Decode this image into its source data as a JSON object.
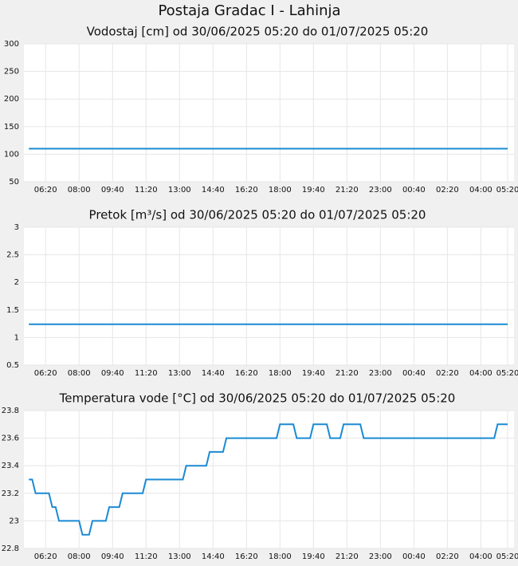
{
  "title": "Postaja Gradac I - Lahinja",
  "chart_data": [
    {
      "type": "line",
      "title": "Vodostaj [cm] od 30/06/2025 05:20 do 01/07/2025 05:20",
      "series": [
        {
          "color": "#1a8ad4",
          "x": [
            10,
            1440
          ],
          "values": [
            110,
            110
          ]
        }
      ],
      "xlim": [
        0,
        1440
      ],
      "xticks": [
        {
          "value": 60,
          "label": "06:20"
        },
        {
          "value": 160,
          "label": "08:00"
        },
        {
          "value": 260,
          "label": "09:40"
        },
        {
          "value": 360,
          "label": "11:20"
        },
        {
          "value": 460,
          "label": "13:00"
        },
        {
          "value": 560,
          "label": "14:40"
        },
        {
          "value": 660,
          "label": "16:20"
        },
        {
          "value": 760,
          "label": "18:00"
        },
        {
          "value": 860,
          "label": "19:40"
        },
        {
          "value": 960,
          "label": "21:20"
        },
        {
          "value": 1060,
          "label": "23:00"
        },
        {
          "value": 1160,
          "label": "00:40"
        },
        {
          "value": 1260,
          "label": "02:20"
        },
        {
          "value": 1360,
          "label": "04:00"
        },
        {
          "value": 1440,
          "label": "05:20"
        }
      ],
      "ylim": [
        50,
        300
      ],
      "yticks": [
        50,
        100,
        150,
        200,
        250,
        300
      ],
      "grid": true
    },
    {
      "type": "line",
      "title": "Pretok [m³/s] od 30/06/2025 05:20 do 01/07/2025 05:20",
      "series": [
        {
          "color": "#1a8ad4",
          "x": [
            10,
            1440
          ],
          "values": [
            1.24,
            1.24
          ]
        }
      ],
      "xlim": [
        0,
        1440
      ],
      "xticks": [
        {
          "value": 60,
          "label": "06:20"
        },
        {
          "value": 160,
          "label": "08:00"
        },
        {
          "value": 260,
          "label": "09:40"
        },
        {
          "value": 360,
          "label": "11:20"
        },
        {
          "value": 460,
          "label": "13:00"
        },
        {
          "value": 560,
          "label": "14:40"
        },
        {
          "value": 660,
          "label": "16:20"
        },
        {
          "value": 760,
          "label": "18:00"
        },
        {
          "value": 860,
          "label": "19:40"
        },
        {
          "value": 960,
          "label": "21:20"
        },
        {
          "value": 1060,
          "label": "23:00"
        },
        {
          "value": 1160,
          "label": "00:40"
        },
        {
          "value": 1260,
          "label": "02:20"
        },
        {
          "value": 1360,
          "label": "04:00"
        },
        {
          "value": 1440,
          "label": "05:20"
        }
      ],
      "ylim": [
        0.5,
        3
      ],
      "yticks": [
        0.5,
        1,
        1.5,
        2,
        2.5,
        3
      ],
      "grid": true
    },
    {
      "type": "line",
      "title": "Temperatura vode [°C] od 30/06/2025 05:20 do 01/07/2025 05:20",
      "series": [
        {
          "color": "#1a8ad4",
          "x": [
            10,
            20,
            30,
            70,
            80,
            90,
            100,
            160,
            170,
            190,
            200,
            240,
            250,
            280,
            290,
            350,
            360,
            470,
            480,
            540,
            550,
            590,
            600,
            750,
            760,
            800,
            810,
            850,
            860,
            900,
            910,
            940,
            950,
            1000,
            1010,
            1400,
            1410,
            1440
          ],
          "values": [
            23.3,
            23.3,
            23.2,
            23.2,
            23.1,
            23.1,
            23.0,
            23.0,
            22.9,
            22.9,
            23.0,
            23.0,
            23.1,
            23.1,
            23.2,
            23.2,
            23.3,
            23.3,
            23.4,
            23.4,
            23.5,
            23.5,
            23.6,
            23.6,
            23.7,
            23.7,
            23.6,
            23.6,
            23.7,
            23.7,
            23.6,
            23.6,
            23.7,
            23.7,
            23.6,
            23.6,
            23.7,
            23.7
          ]
        }
      ],
      "xlim": [
        0,
        1440
      ],
      "xticks": [
        {
          "value": 60,
          "label": "06:20"
        },
        {
          "value": 160,
          "label": "08:00"
        },
        {
          "value": 260,
          "label": "09:40"
        },
        {
          "value": 360,
          "label": "11:20"
        },
        {
          "value": 460,
          "label": "13:00"
        },
        {
          "value": 560,
          "label": "14:40"
        },
        {
          "value": 660,
          "label": "16:20"
        },
        {
          "value": 760,
          "label": "18:00"
        },
        {
          "value": 860,
          "label": "19:40"
        },
        {
          "value": 960,
          "label": "21:20"
        },
        {
          "value": 1060,
          "label": "23:00"
        },
        {
          "value": 1160,
          "label": "00:40"
        },
        {
          "value": 1260,
          "label": "02:20"
        },
        {
          "value": 1360,
          "label": "04:00"
        },
        {
          "value": 1440,
          "label": "05:20"
        }
      ],
      "ylim": [
        22.8,
        23.8
      ],
      "yticks": [
        22.8,
        23,
        23.2,
        23.4,
        23.6,
        23.8
      ],
      "grid": true
    }
  ]
}
